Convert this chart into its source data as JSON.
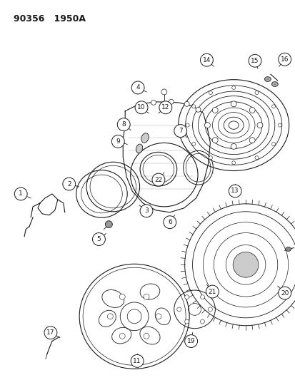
{
  "title": "90356   1950A",
  "bg_color": "#ffffff",
  "line_color": "#1a1a1a",
  "fig_w": 4.14,
  "fig_h": 5.33,
  "dpi": 100
}
